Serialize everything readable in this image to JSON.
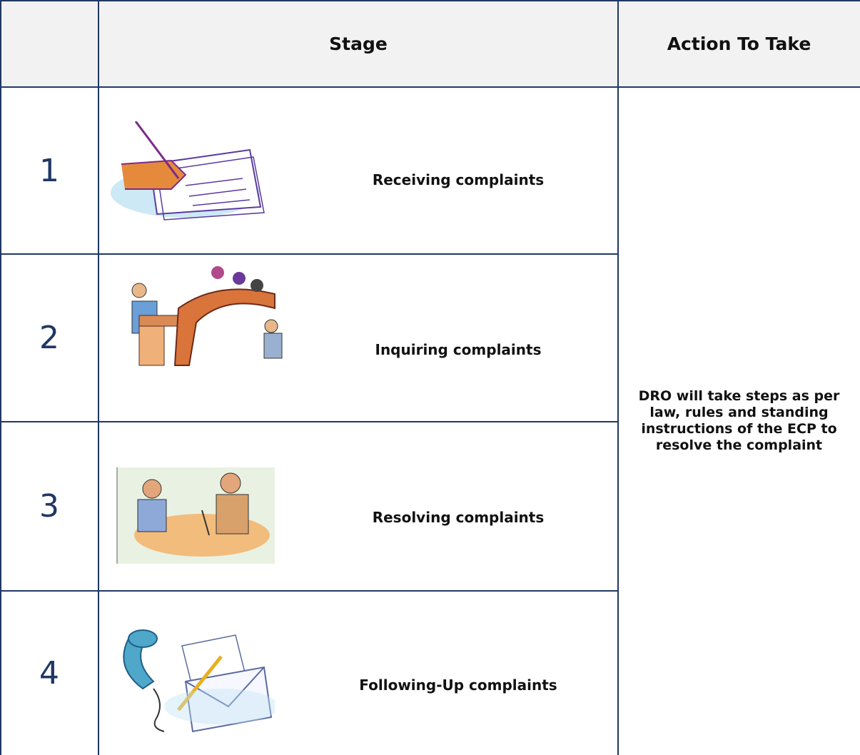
{
  "table": {
    "header": {
      "stage": "Stage",
      "action": "Action To Take"
    },
    "rows": [
      {
        "number": 1,
        "stage": "Receiving complaints"
      },
      {
        "number": 2,
        "stage": "Inquiring complaints"
      },
      {
        "number": 3,
        "stage": "Resolving complaints"
      },
      {
        "number": 4,
        "stage": "Following-Up complaints"
      }
    ],
    "action": "DRO will take steps as per law, rules and standing instructions of the ECP to resolve the complaint"
  }
}
